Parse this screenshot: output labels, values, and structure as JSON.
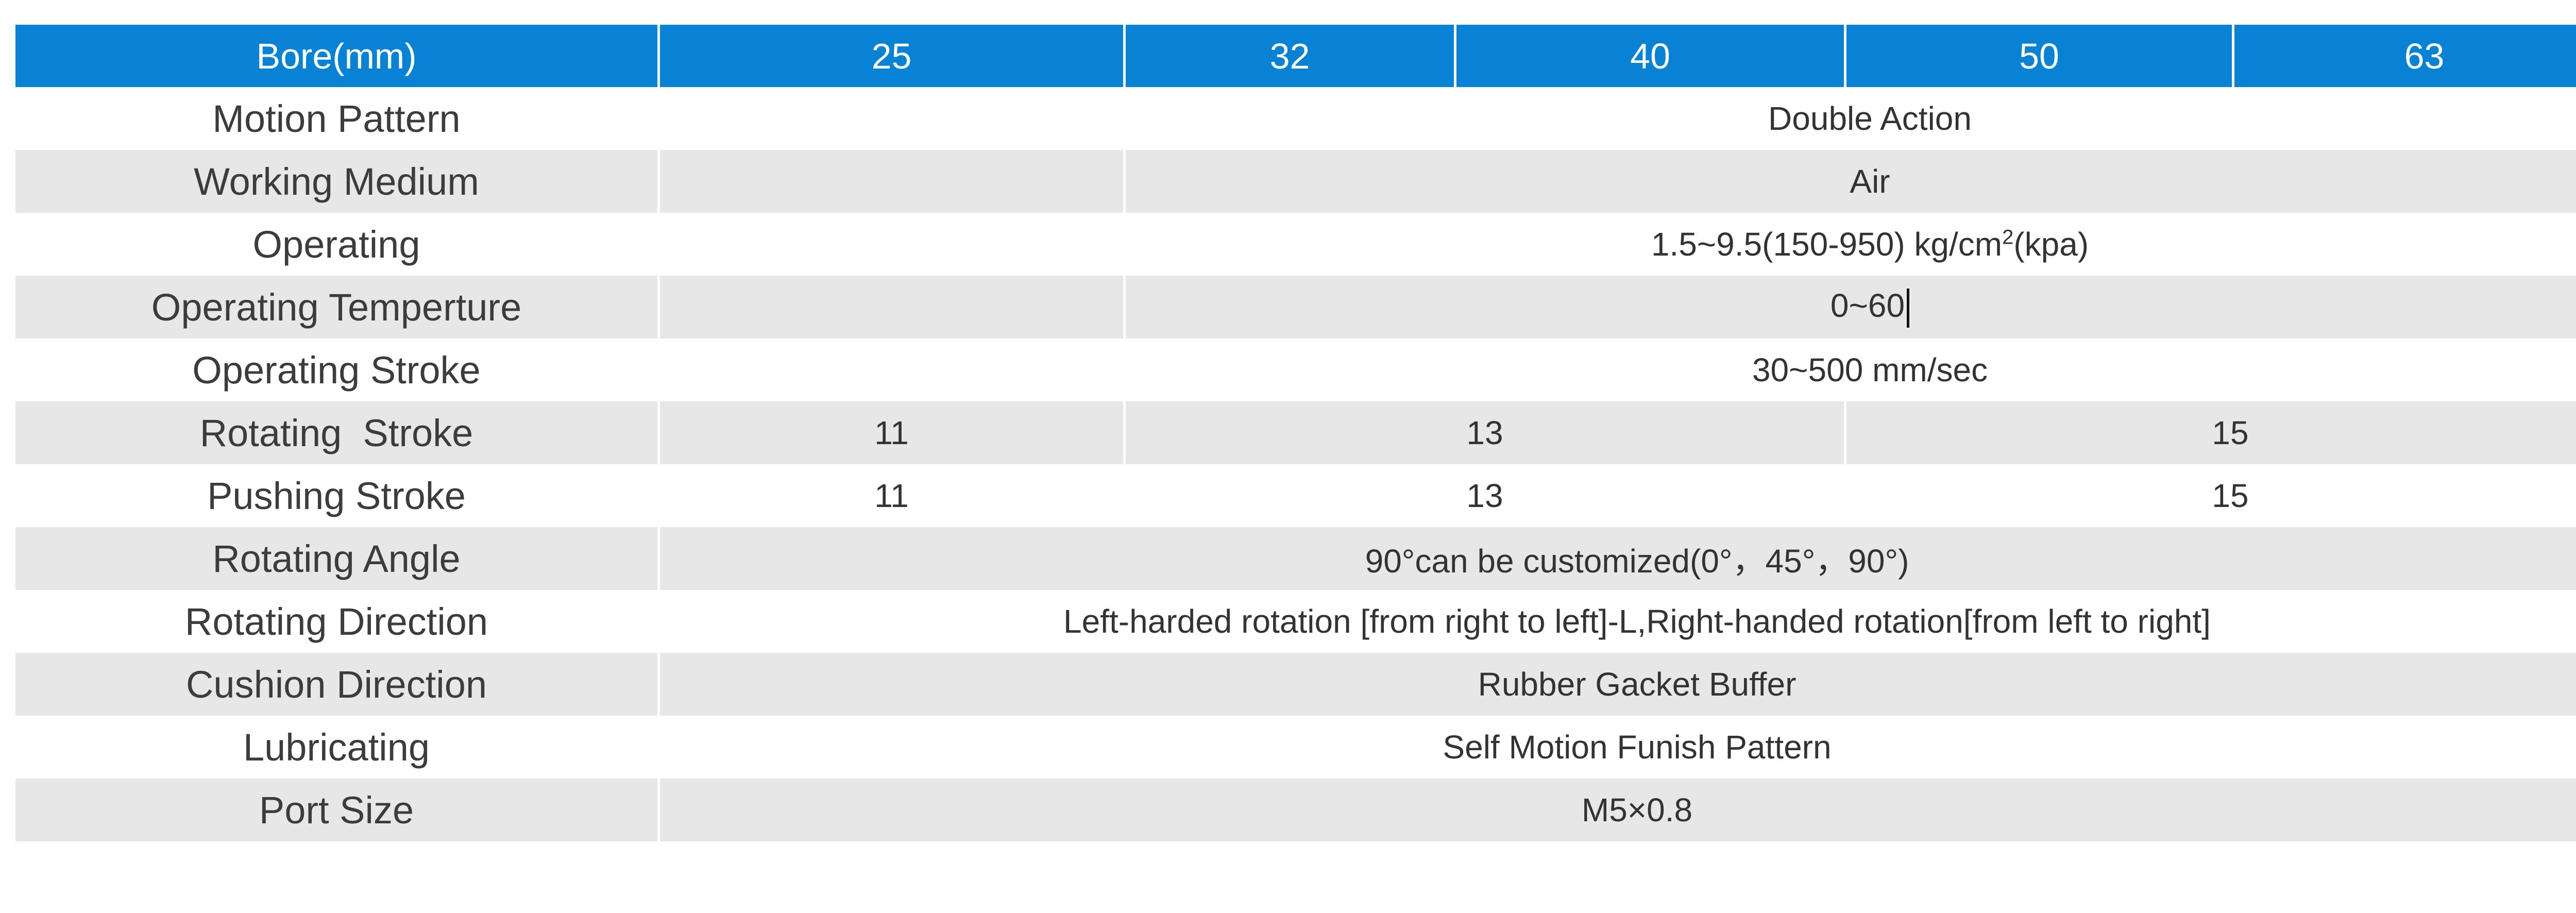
{
  "header": {
    "label": "Bore(mm)",
    "bores": [
      "25",
      "32",
      "40",
      "50",
      "63"
    ]
  },
  "rows": {
    "motion_pattern": {
      "label": "Motion Pattern",
      "value": "Double Action"
    },
    "working_medium": {
      "label": "Working Medium",
      "value": "Air"
    },
    "operating": {
      "label": "Operating",
      "value_main": "1.5~9.5(150-950) kg/cm",
      "value_sup": "2",
      "value_tail": "(kpa)"
    },
    "operating_temperature": {
      "label": "Operating Temperture",
      "value": "0~60"
    },
    "operating_stroke": {
      "label": "Operating Stroke",
      "value": "30~500 mm/sec"
    },
    "rotating_stroke": {
      "label": "Rotating  Stroke",
      "values": [
        "11",
        "13",
        "15"
      ]
    },
    "pushing_stroke": {
      "label": "Pushing Stroke",
      "values": [
        "11",
        "13",
        "15"
      ]
    },
    "rotating_angle": {
      "label": "Rotating Angle",
      "value": "90°can be customized(0°，45°，90°)"
    },
    "rotating_direction": {
      "label": "Rotating Direction",
      "value": "Left-harded rotation [from right to left]-L,Right-handed rotation[from left to right]"
    },
    "cushion_direction": {
      "label": "Cushion Direction",
      "value": "Rubber Gacket Buffer"
    },
    "lubricating": {
      "label": "Lubricating",
      "value": "Self Motion Funish Pattern"
    },
    "port_size": {
      "label": "Port Size",
      "value": "M5×0.8"
    }
  },
  "colors": {
    "header_bg": "#0882d4",
    "header_text": "#ffffff",
    "stripe": "#e7e7e7",
    "text": "#333333"
  }
}
